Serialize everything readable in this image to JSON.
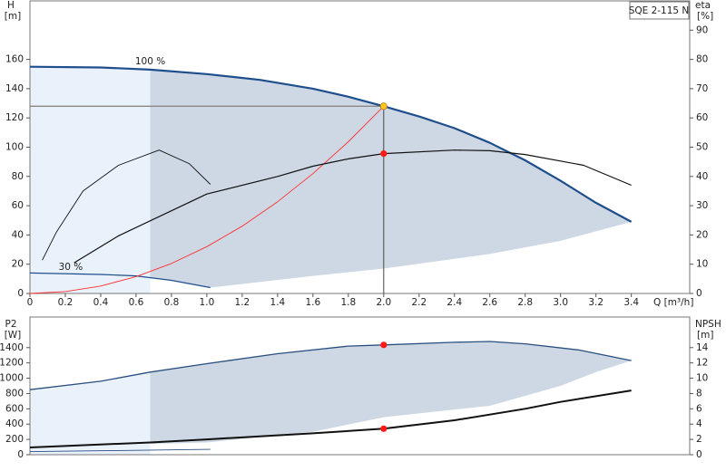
{
  "chart_data": [
    {
      "type": "line",
      "title": "SQE 2-115 N",
      "ylabel": "H",
      "yunit": "[m]",
      "y2label": "eta",
      "y2unit": "[%]",
      "xlabel": "Q [m³/h]",
      "xlim": [
        0,
        3.73
      ],
      "ylim": [
        0,
        200
      ],
      "y2lim": [
        0,
        100
      ],
      "xticks": [
        0,
        0.2,
        0.4,
        0.6,
        0.8,
        {
          "value": 1,
          "label": "1.0"
        },
        1.2,
        1.4,
        1.6,
        1.8,
        {
          "value": 2,
          "label": "2.0"
        },
        2.2,
        2.4,
        2.6,
        2.8,
        {
          "value": 3,
          "label": "3.0"
        },
        3.2,
        3.4
      ],
      "yticks": [
        0,
        20,
        40,
        60,
        80,
        100,
        120,
        140,
        160
      ],
      "y2ticks": [
        0,
        10,
        20,
        30,
        40,
        50,
        60,
        70,
        80,
        90
      ],
      "shade": {
        "split": 0.68,
        "x": [
          0.68,
          0.8,
          1.02,
          1.6,
          2.0,
          2.6,
          3.0,
          3.4
        ],
        "lower": [
          11,
          9,
          4,
          12,
          17,
          27,
          36,
          49
        ]
      },
      "series": [
        {
          "label": "100 %",
          "color": "#1f4e8c",
          "width": 2.2,
          "x": [
            0,
            0.4,
            0.68,
            1.0,
            1.3,
            1.6,
            1.8,
            2.0,
            2.2,
            2.4,
            2.6,
            2.8,
            3.0,
            3.2,
            3.4
          ],
          "values": [
            155,
            154.5,
            153,
            150,
            146,
            140,
            134.5,
            128,
            121,
            113,
            103,
            91,
            77,
            62,
            49
          ]
        },
        {
          "label": "30 %",
          "color": "#1f4e8c",
          "width": 1.2,
          "x": [
            0,
            0.4,
            0.6,
            0.8,
            1.02
          ],
          "values": [
            14,
            13,
            12,
            9,
            4
          ]
        },
        {
          "color": "#ff3030",
          "width": 0.9,
          "x": [
            0,
            0.2,
            0.4,
            0.6,
            0.8,
            1.0,
            1.2,
            1.4,
            1.6,
            1.8,
            2.0
          ],
          "values": [
            0,
            1.3,
            5.1,
            11.5,
            20.5,
            32,
            46,
            62.7,
            81.9,
            103.7,
            128
          ]
        },
        {
          "color": "#111111",
          "width": 1.2,
          "axis": "y2",
          "x": [
            0.25,
            0.5,
            1.0,
            1.4,
            1.6,
            1.8,
            2.0,
            2.4,
            2.6,
            2.8,
            3.13,
            3.4
          ],
          "values": [
            10.5,
            19.7,
            34,
            40,
            43.5,
            46,
            47.8,
            49,
            48.8,
            47.5,
            43.8,
            37
          ]
        },
        {
          "color": "#111111",
          "width": 0.9,
          "axis": "y2",
          "x": [
            0.07,
            0.15,
            0.3,
            0.5,
            0.73,
            0.9,
            1.02
          ],
          "values": [
            11.4,
            21,
            35,
            43.8,
            49,
            44.4,
            37.3
          ]
        }
      ],
      "markers": [
        {
          "x": 2.0,
          "y": 128,
          "color": "#ffc820",
          "guide": true
        },
        {
          "x": 2.0,
          "y": 47.8,
          "axis": "y2",
          "color": "#ff1a1a"
        }
      ]
    },
    {
      "type": "line",
      "ylabel": "P2",
      "yunit": "[W]",
      "y2label": "NPSH",
      "y2unit": "[m]",
      "xlim": [
        0,
        3.73
      ],
      "ylim": [
        0,
        1800
      ],
      "y2lim": [
        0,
        18
      ],
      "yticks": [
        0,
        200,
        400,
        600,
        800,
        1000,
        1200,
        1400
      ],
      "y2ticks": [
        0,
        2,
        4,
        6,
        8,
        10,
        12,
        14
      ],
      "shade": {
        "split": 0.68,
        "x": [
          0.68,
          1.0,
          1.6,
          2.0,
          2.6,
          3.0,
          3.2,
          3.4
        ],
        "lower": [
          140,
          160,
          300,
          490,
          640,
          900,
          1080,
          1230
        ]
      },
      "series": [
        {
          "color": "#2a4f7f",
          "width": 1.3,
          "x": [
            0,
            0.4,
            0.68,
            1.0,
            1.4,
            1.8,
            2.0,
            2.4,
            2.6,
            2.8,
            3.1,
            3.4
          ],
          "values": [
            850,
            960,
            1080,
            1190,
            1320,
            1420,
            1435,
            1470,
            1480,
            1450,
            1370,
            1230
          ]
        },
        {
          "color": "#2a4f7f",
          "width": 0.9,
          "x": [
            0,
            0.5,
            1.02
          ],
          "values": [
            40,
            55,
            70
          ]
        },
        {
          "color": "#111111",
          "width": 2,
          "axis": "y2",
          "x": [
            0,
            0.68,
            1.0,
            1.6,
            2.0,
            2.4,
            2.8,
            3.0,
            3.4
          ],
          "values": [
            0.95,
            1.6,
            2.0,
            2.8,
            3.4,
            4.5,
            6.0,
            6.9,
            8.4
          ]
        }
      ],
      "markers": [
        {
          "x": 2.0,
          "y": 1435,
          "color": "#ff1a1a"
        },
        {
          "x": 2.0,
          "y": 3.4,
          "axis": "y2",
          "color": "#ff1a1a"
        }
      ]
    }
  ]
}
